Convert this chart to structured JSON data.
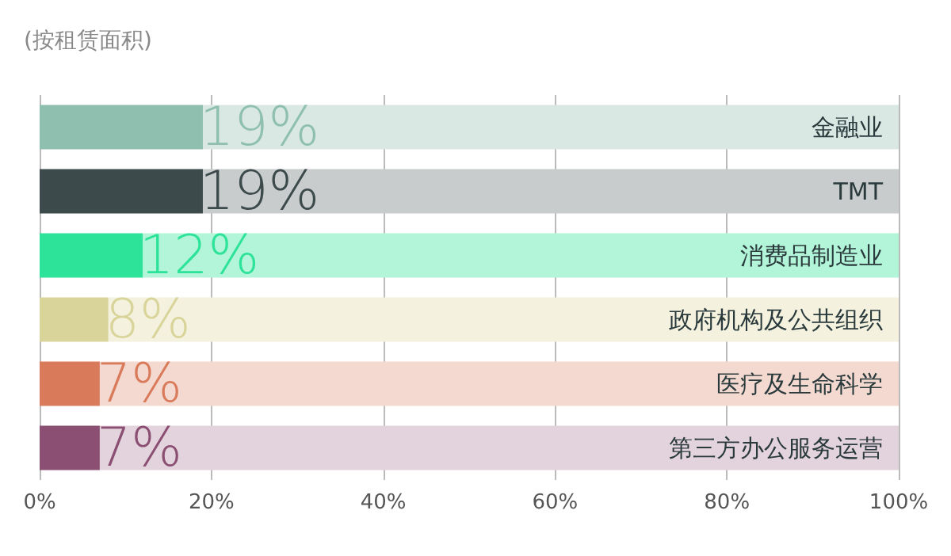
{
  "chart_data": {
    "type": "bar",
    "orientation": "horizontal",
    "stacked": true,
    "title": "(按租赁面积)",
    "categories": [
      "金融业",
      "TMT",
      "消费品制造业",
      "政府机构及公共组织",
      "医疗及生命科学",
      "第三方办公服务运营"
    ],
    "series": [
      {
        "colors": [
          "#8fbfae",
          "#3d4a4b",
          "#2de39a",
          "#d9d49a",
          "#d97a5a",
          "#8a4f72"
        ],
        "values": [
          19,
          19,
          12,
          8,
          7,
          7
        ],
        "value_labels": [
          "19%",
          "19%",
          "12%",
          "8%",
          "7%",
          "7%"
        ]
      },
      {
        "colors": [
          "#d9e8e3",
          "#c8cccc",
          "#b3f5d8",
          "#f4f2df",
          "#f3d9cf",
          "#e3d3dc"
        ],
        "values": [
          81,
          81,
          88,
          92,
          93,
          93
        ]
      }
    ],
    "xlim": [
      0,
      100
    ],
    "xticks": [
      {
        "value": 0,
        "label": "0%"
      },
      {
        "value": 20,
        "label": "20%"
      },
      {
        "value": 40,
        "label": "40%"
      },
      {
        "value": 60,
        "label": "60%"
      },
      {
        "value": 80,
        "label": "80%"
      },
      {
        "value": 100,
        "label": "100%"
      }
    ],
    "grid": "x"
  }
}
